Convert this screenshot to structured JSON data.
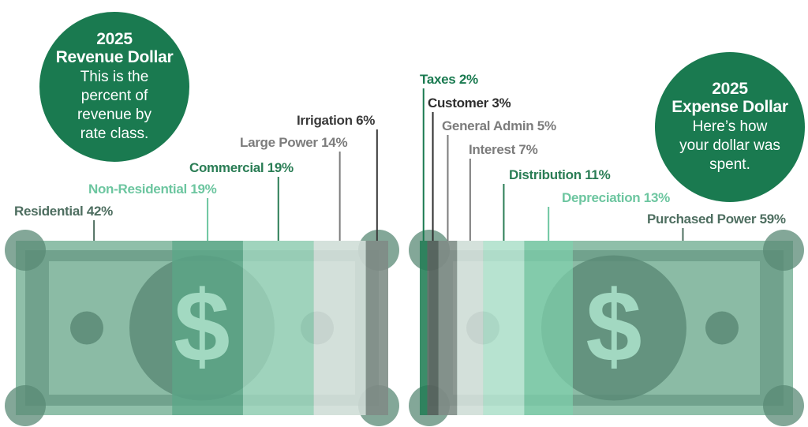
{
  "revenue": {
    "year": "2025",
    "title": "Revenue Dollar",
    "description": "This is the percent of revenue by rate class.",
    "symbol": "$"
  },
  "expense": {
    "year": "2025",
    "title": "Expense Dollar",
    "description": "Here’s how your dollar was spent.",
    "symbol": "$"
  },
  "colors": {
    "accent": "#1a7a50",
    "bill_base": "#8fbfa9",
    "bill_dark": "#5a8a76",
    "label_dark": "#4e6e60",
    "label_gray": "#7c7c7c",
    "label_green": "#2a7d55",
    "label_light_green": "#6dc6a0"
  },
  "chart_data": [
    {
      "type": "bar",
      "orientation": "stacked-horizontal",
      "unit": "%",
      "categories": [
        "Residential",
        "Non-Residential",
        "Commercial",
        "Large Power",
        "Irrigation"
      ],
      "values": [
        42,
        19,
        19,
        14,
        6
      ],
      "labels": [
        "Residential 42%",
        "Non-Residential 19%",
        "Commercial 19%",
        "Large Power 14%",
        "Irrigation 6%"
      ],
      "segment_colors": [
        "#8fbfa9",
        "#5aa888",
        "#a6dcc5",
        "#efefef",
        "#8a8a8a"
      ],
      "label_colors": [
        "#4e6e60",
        "#6dc6a0",
        "#2a7d55",
        "#7c7c7c",
        "#3a3a3a"
      ]
    },
    {
      "type": "bar",
      "orientation": "stacked-horizontal",
      "unit": "%",
      "categories": [
        "Taxes",
        "Customer",
        "General Admin",
        "Interest",
        "Distribution",
        "Depreciation",
        "Purchased Power"
      ],
      "values": [
        2,
        3,
        5,
        7,
        11,
        13,
        59
      ],
      "labels": [
        "Taxes 2%",
        "Customer 3%",
        "General Admin 5%",
        "Interest 7%",
        "Distribution 11%",
        "Depreciation 13%",
        "Purchased Power 59%"
      ],
      "segment_colors": [
        "#1a7a50",
        "#555555",
        "#8a8a8a",
        "#efefef",
        "#c8f2e0",
        "#7fd1ad",
        "#8fbfa9"
      ],
      "label_colors": [
        "#1a7a50",
        "#2e2e2e",
        "#7c7c7c",
        "#7c7c7c",
        "#2a7d55",
        "#6dc6a0",
        "#4e6e60"
      ]
    }
  ]
}
